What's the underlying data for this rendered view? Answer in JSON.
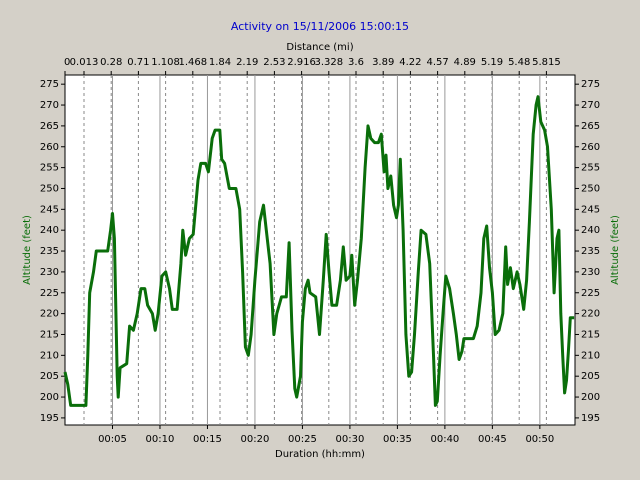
{
  "chart_data": {
    "type": "line",
    "title": "Activity on 15/11/2006 15:00:15",
    "x2label": "Distance (mi)",
    "xlabel": "Duration (hh:mm)",
    "ylabel": "Altitude (feet)",
    "x": [
      0,
      0.3,
      0.6,
      1,
      2,
      2.2,
      2.4,
      2.6,
      3,
      3.3,
      4,
      4.5,
      4.8,
      5.0,
      5.2,
      5.5,
      5.6,
      5.8,
      6.5,
      6.8,
      7.2,
      7.6,
      8,
      8.4,
      8.7,
      9.2,
      9.5,
      9.8,
      10.2,
      10.6,
      11,
      11.3,
      11.8,
      12.2,
      12.4,
      12.7,
      13.1,
      13.5,
      14,
      14.3,
      14.8,
      15.1,
      15.5,
      15.8,
      16.3,
      16.5,
      16.8,
      17.3,
      18,
      18.4,
      18.7,
      19,
      19.3,
      19.6,
      20,
      20.5,
      20.9,
      21.2,
      21.6,
      22,
      22.3,
      22.8,
      23.3,
      23.6,
      23.9,
      24.2,
      24.4,
      24.8,
      25,
      25.3,
      25.6,
      25.8,
      26.4,
      26.8,
      27.2,
      27.5,
      27.8,
      28.1,
      28.6,
      29,
      29.3,
      29.6,
      30,
      30.2,
      30.5,
      30.8,
      31.2,
      31.6,
      31.9,
      32.2,
      32.6,
      33,
      33.3,
      33.6,
      33.8,
      34,
      34.3,
      34.6,
      34.9,
      35.1,
      35.3,
      35.6,
      35.9,
      36.2,
      36.5,
      36.8,
      37.2,
      37.5,
      38,
      38.4,
      38.8,
      39,
      39.2,
      39.5,
      39.8,
      40.1,
      40.5,
      40.9,
      41.2,
      41.5,
      41.8,
      42,
      43,
      43.4,
      43.8,
      44.1,
      44.4,
      44.7,
      45,
      45.3,
      45.7,
      46.1,
      46.4,
      46.6,
      46.9,
      47.2,
      47.6,
      47.9,
      48.3,
      48.6,
      48.9,
      49.3,
      49.6,
      49.8,
      50.1,
      50.5,
      50.8,
      51.2,
      51.5,
      51.8,
      52,
      52.2,
      52.4,
      52.6,
      52.8,
      53.0,
      53.2,
      53.6
    ],
    "series": [
      {
        "name": "Altitude",
        "color": "#0a6e0a",
        "values": [
          206,
          203,
          198,
          198,
          198,
          198,
          210,
          225,
          230,
          235,
          235,
          235,
          240,
          244,
          238,
          205,
          200,
          207,
          208,
          217,
          216,
          220,
          226,
          226,
          222,
          220,
          216,
          220,
          229,
          230,
          226,
          221,
          221,
          232,
          240,
          234,
          238,
          239,
          252,
          256,
          256,
          254,
          262,
          264,
          264,
          257,
          256,
          250,
          250,
          245,
          230,
          212,
          210,
          215,
          228,
          242,
          246,
          240,
          232,
          215,
          220,
          224,
          224,
          237,
          216,
          202,
          200,
          205,
          218,
          226,
          228,
          225,
          224,
          215,
          228,
          239,
          230,
          222,
          222,
          228,
          236,
          228,
          229,
          234,
          222,
          228,
          238,
          255,
          265,
          262,
          261,
          261,
          263,
          254,
          258,
          250,
          253,
          246,
          243,
          246,
          257,
          240,
          215,
          205,
          206,
          215,
          230,
          240,
          239,
          232,
          210,
          198,
          199,
          210,
          220,
          229,
          226,
          220,
          215,
          209,
          211,
          214,
          214,
          217,
          225,
          238,
          241,
          231,
          225,
          215,
          216,
          220,
          236,
          227,
          231,
          226,
          230,
          227,
          221,
          228,
          242,
          263,
          270,
          272,
          266,
          264,
          260,
          245,
          225,
          238,
          240,
          220,
          210,
          201,
          204,
          211,
          219,
          219
        ]
      }
    ],
    "xlim": [
      0,
      53.7
    ],
    "xticks": [
      {
        "value": 5,
        "label": "00:05"
      },
      {
        "value": 10,
        "label": "00:10"
      },
      {
        "value": 15,
        "label": "00:15"
      },
      {
        "value": 20,
        "label": "00:20"
      },
      {
        "value": 25,
        "label": "00:25"
      },
      {
        "value": 30,
        "label": "00:30"
      },
      {
        "value": 35,
        "label": "00:35"
      },
      {
        "value": 40,
        "label": "00:40"
      },
      {
        "value": 45,
        "label": "00:45"
      },
      {
        "value": 50,
        "label": "00:50"
      }
    ],
    "x2ticks": [
      0,
      0.013,
      0.28,
      0.71,
      1.108,
      1.468,
      1.84,
      2.19,
      2.53,
      2.916,
      3.328,
      3.6,
      3.89,
      4.22,
      4.57,
      4.89,
      5.19,
      5.48,
      5.815
    ],
    "ylim": [
      193.3,
      277.2
    ],
    "yticks": [
      195,
      200,
      205,
      210,
      215,
      220,
      225,
      230,
      235,
      240,
      245,
      250,
      255,
      260,
      265,
      270,
      275
    ]
  }
}
